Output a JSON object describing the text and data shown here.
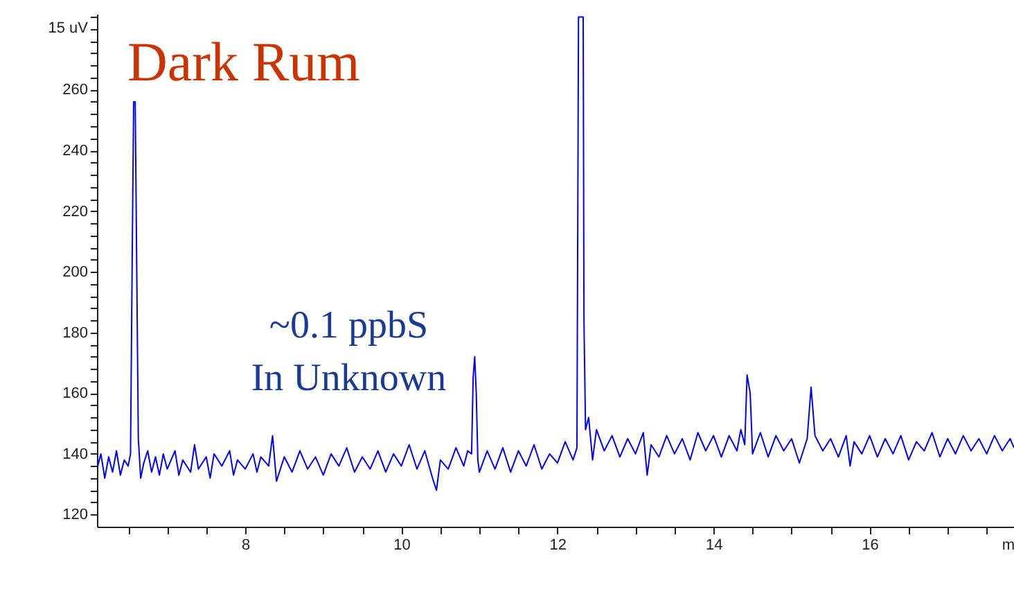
{
  "chart_data": {
    "type": "line",
    "title": "Dark Rum",
    "xlabel": "m",
    "annotations": [
      {
        "text": "~0.1 ppbS\nIn Unknown",
        "x": 10.94,
        "y": 172
      }
    ],
    "xlim": [
      6.1,
      17.85
    ],
    "ylim": [
      116,
      285
    ],
    "xticks": [
      {
        "value": 6.5,
        "label": null
      },
      {
        "value": 7,
        "label": null
      },
      {
        "value": 7.5,
        "label": null
      },
      8,
      {
        "value": 8.5,
        "label": null
      },
      {
        "value": 9,
        "label": null
      },
      {
        "value": 9.5,
        "label": null
      },
      10,
      {
        "value": 10.5,
        "label": null
      },
      {
        "value": 11,
        "label": null
      },
      {
        "value": 11.5,
        "label": null
      },
      12,
      {
        "value": 12.5,
        "label": null
      },
      {
        "value": 13,
        "label": null
      },
      {
        "value": 13.5,
        "label": null
      },
      14,
      {
        "value": 14.5,
        "label": null
      },
      {
        "value": 15,
        "label": null
      },
      {
        "value": 15.5,
        "label": null
      },
      16,
      {
        "value": 16.5,
        "label": null
      },
      {
        "value": 17,
        "label": null
      },
      {
        "value": 17.5,
        "label": null
      }
    ],
    "yticks": [
      120,
      {
        "value": 124,
        "label": null
      },
      {
        "value": 128,
        "label": null
      },
      {
        "value": 132,
        "label": null
      },
      {
        "value": 136,
        "label": null
      },
      140,
      {
        "value": 144,
        "label": null
      },
      {
        "value": 148,
        "label": null
      },
      {
        "value": 152,
        "label": null
      },
      {
        "value": 156,
        "label": null
      },
      160,
      {
        "value": 164,
        "label": null
      },
      {
        "value": 168,
        "label": null
      },
      {
        "value": 172,
        "label": null
      },
      {
        "value": 176,
        "label": null
      },
      180,
      {
        "value": 184,
        "label": null
      },
      {
        "value": 188,
        "label": null
      },
      {
        "value": 192,
        "label": null
      },
      {
        "value": 196,
        "label": null
      },
      200,
      {
        "value": 204,
        "label": null
      },
      {
        "value": 208,
        "label": null
      },
      {
        "value": 212,
        "label": null
      },
      {
        "value": 216,
        "label": null
      },
      220,
      {
        "value": 224,
        "label": null
      },
      {
        "value": 228,
        "label": null
      },
      {
        "value": 232,
        "label": null
      },
      {
        "value": 236,
        "label": null
      },
      240,
      {
        "value": 244,
        "label": null
      },
      {
        "value": 248,
        "label": null
      },
      {
        "value": 252,
        "label": null
      },
      {
        "value": 256,
        "label": null
      },
      260,
      {
        "value": 264,
        "label": null
      },
      {
        "value": 268,
        "label": null
      },
      {
        "value": 272,
        "label": null
      },
      {
        "value": 276,
        "label": null
      },
      {
        "value": 280,
        "label": null
      },
      {
        "value": 284,
        "label": null
      }
    ],
    "ylabel": "15 uV",
    "grid": false,
    "series": [
      {
        "color": "#0000ff",
        "x": [
          6.1,
          6.15,
          6.2,
          6.25,
          6.3,
          6.35,
          6.4,
          6.45,
          6.5,
          6.53,
          6.55,
          6.57,
          6.59,
          6.61,
          6.63,
          6.66,
          6.7,
          6.75,
          6.8,
          6.85,
          6.9,
          6.95,
          7.0,
          7.1,
          7.15,
          7.2,
          7.3,
          7.35,
          7.4,
          7.5,
          7.55,
          7.6,
          7.7,
          7.8,
          7.85,
          7.9,
          8.0,
          8.1,
          8.15,
          8.2,
          8.3,
          8.35,
          8.4,
          8.5,
          8.6,
          8.7,
          8.8,
          8.9,
          9.0,
          9.1,
          9.2,
          9.3,
          9.4,
          9.5,
          9.6,
          9.7,
          9.8,
          9.9,
          10.0,
          10.1,
          10.2,
          10.3,
          10.4,
          10.45,
          10.5,
          10.6,
          10.7,
          10.8,
          10.85,
          10.9,
          10.92,
          10.94,
          10.96,
          10.98,
          11.0,
          11.1,
          11.2,
          11.3,
          11.4,
          11.5,
          11.6,
          11.7,
          11.8,
          11.9,
          12.0,
          12.1,
          12.2,
          12.25,
          12.27,
          12.33,
          12.34,
          12.36,
          12.4,
          12.45,
          12.5,
          12.6,
          12.7,
          12.8,
          12.9,
          13.0,
          13.1,
          13.15,
          13.2,
          13.3,
          13.4,
          13.5,
          13.6,
          13.7,
          13.8,
          13.9,
          14.0,
          14.1,
          14.2,
          14.3,
          14.35,
          14.4,
          14.43,
          14.47,
          14.5,
          14.6,
          14.7,
          14.8,
          14.9,
          15.0,
          15.1,
          15.2,
          15.25,
          15.3,
          15.4,
          15.5,
          15.6,
          15.7,
          15.75,
          15.8,
          15.9,
          16.0,
          16.1,
          16.2,
          16.3,
          16.4,
          16.5,
          16.6,
          16.7,
          16.8,
          16.9,
          17.0,
          17.1,
          17.2,
          17.3,
          17.4,
          17.5,
          17.6,
          17.7,
          17.8,
          17.85
        ],
        "values": [
          135,
          140,
          132,
          139,
          134,
          141,
          133,
          138,
          136,
          140,
          200,
          256,
          256,
          200,
          145,
          132,
          137,
          141,
          134,
          139,
          133,
          140,
          135,
          141,
          133,
          138,
          134,
          143,
          135,
          139,
          132,
          140,
          136,
          141,
          133,
          138,
          135,
          140,
          134,
          139,
          136,
          146,
          131,
          139,
          134,
          141,
          135,
          139,
          133,
          140,
          136,
          142,
          134,
          139,
          135,
          141,
          134,
          140,
          136,
          143,
          135,
          141,
          132,
          128,
          138,
          135,
          142,
          136,
          141,
          140,
          165,
          172,
          160,
          138,
          134,
          141,
          135,
          142,
          134,
          141,
          136,
          143,
          135,
          140,
          137,
          144,
          138,
          142,
          284,
          284,
          184,
          148,
          152,
          138,
          148,
          141,
          146,
          139,
          145,
          140,
          147,
          133,
          143,
          139,
          146,
          140,
          145,
          138,
          147,
          141,
          146,
          139,
          146,
          141,
          148,
          143,
          166,
          160,
          140,
          147,
          139,
          146,
          141,
          145,
          137,
          145,
          162,
          146,
          141,
          145,
          139,
          146,
          136,
          144,
          140,
          146,
          139,
          145,
          140,
          146,
          138,
          144,
          141,
          147,
          139,
          145,
          140,
          146,
          141,
          145,
          140,
          146,
          141,
          145,
          142
        ]
      }
    ]
  }
}
